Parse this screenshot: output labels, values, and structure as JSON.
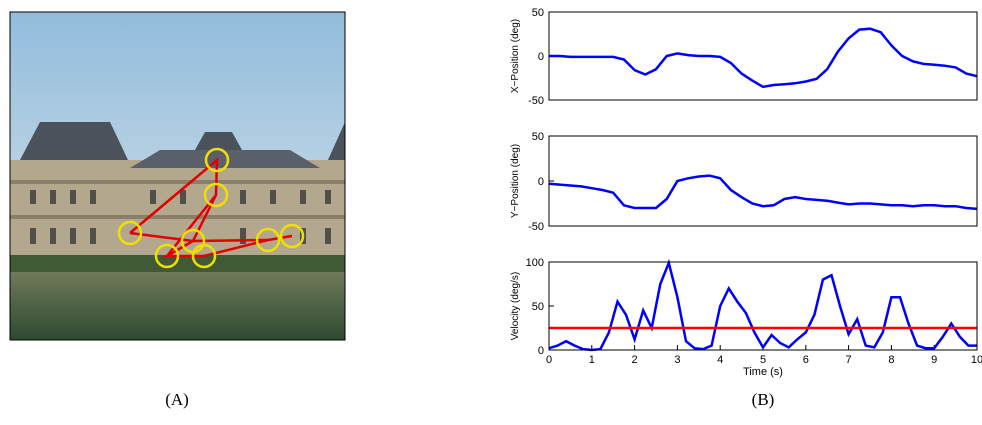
{
  "panel_labels": {
    "a": "(A)",
    "b": "(B)"
  },
  "chart_data": [
    {
      "type": "line",
      "ylabel": "X−Position (deg)",
      "color": "#0000ff",
      "x": [
        0,
        0.25,
        0.5,
        0.75,
        1,
        1.25,
        1.5,
        1.75,
        2,
        2.25,
        2.5,
        2.75,
        3,
        3.25,
        3.5,
        3.75,
        4,
        4.25,
        4.5,
        4.75,
        5,
        5.25,
        5.5,
        5.75,
        6,
        6.25,
        6.5,
        6.75,
        7,
        7.25,
        7.5,
        7.75,
        8,
        8.25,
        8.5,
        8.75,
        9,
        9.25,
        9.5,
        9.75,
        10
      ],
      "values": [
        0,
        0,
        -1,
        -1,
        -1,
        -1,
        -1,
        -4,
        -16,
        -21,
        -15,
        0,
        3,
        1,
        0,
        0,
        -1,
        -8,
        -20,
        -28,
        -35,
        -33,
        -32,
        -31,
        -29,
        -26,
        -15,
        5,
        20,
        30,
        31,
        27,
        12,
        0,
        -6,
        -9,
        -10,
        -11,
        -13,
        -20,
        -23
      ],
      "xlim": [
        0,
        10
      ],
      "ylim": [
        -50,
        50
      ],
      "yticks": [
        -50,
        0,
        50
      ]
    },
    {
      "type": "line",
      "ylabel": "Y−Position (deg)",
      "color": "#0000ff",
      "x": [
        0,
        0.25,
        0.5,
        0.75,
        1,
        1.25,
        1.5,
        1.75,
        2,
        2.25,
        2.5,
        2.75,
        3,
        3.25,
        3.5,
        3.75,
        4,
        4.25,
        4.5,
        4.75,
        5,
        5.25,
        5.5,
        5.75,
        6,
        6.25,
        6.5,
        6.75,
        7,
        7.25,
        7.5,
        7.75,
        8,
        8.25,
        8.5,
        8.75,
        9,
        9.25,
        9.5,
        9.75,
        10
      ],
      "values": [
        -3,
        -4,
        -5,
        -6,
        -8,
        -10,
        -13,
        -27,
        -30,
        -30,
        -30,
        -20,
        0,
        3,
        5,
        6,
        3,
        -10,
        -18,
        -25,
        -28,
        -27,
        -20,
        -18,
        -20,
        -21,
        -22,
        -24,
        -26,
        -25,
        -25,
        -26,
        -27,
        -27,
        -28,
        -27,
        -27,
        -28,
        -28,
        -30,
        -31
      ],
      "xlim": [
        0,
        10
      ],
      "ylim": [
        -50,
        50
      ],
      "yticks": [
        -50,
        0,
        50
      ]
    },
    {
      "type": "line",
      "ylabel": "Velocity (deg/s)",
      "xlabel": "Time (s)",
      "color": "#0000ff",
      "x": [
        0,
        0.2,
        0.4,
        0.6,
        0.8,
        1,
        1.2,
        1.4,
        1.6,
        1.8,
        2,
        2.2,
        2.4,
        2.6,
        2.8,
        3,
        3.2,
        3.4,
        3.6,
        3.8,
        4,
        4.2,
        4.4,
        4.6,
        4.8,
        5,
        5.2,
        5.4,
        5.6,
        5.8,
        6,
        6.2,
        6.4,
        6.6,
        6.8,
        7,
        7.2,
        7.4,
        7.6,
        7.8,
        8,
        8.2,
        8.4,
        8.6,
        8.8,
        9,
        9.2,
        9.4,
        9.6,
        9.8,
        10
      ],
      "values": [
        2,
        5,
        10,
        5,
        1,
        0,
        1,
        20,
        55,
        40,
        12,
        45,
        25,
        75,
        99,
        60,
        10,
        2,
        1,
        5,
        50,
        70,
        55,
        42,
        20,
        3,
        17,
        8,
        3,
        12,
        20,
        40,
        80,
        85,
        50,
        18,
        35,
        5,
        3,
        20,
        60,
        60,
        30,
        5,
        2,
        2,
        15,
        30,
        15,
        5,
        5
      ],
      "threshold": {
        "value": 25,
        "color": "#ff0000"
      },
      "xlim": [
        0,
        10
      ],
      "ylim": [
        0,
        100
      ],
      "yticks": [
        0,
        50,
        100
      ],
      "xticks": [
        0,
        1,
        2,
        3,
        4,
        5,
        6,
        7,
        8,
        9,
        10
      ]
    }
  ]
}
